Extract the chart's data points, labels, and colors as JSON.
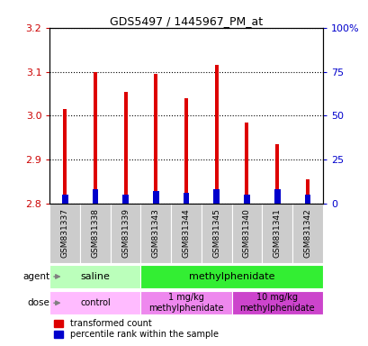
{
  "title": "GDS5497 / 1445967_PM_at",
  "samples": [
    "GSM831337",
    "GSM831338",
    "GSM831339",
    "GSM831343",
    "GSM831344",
    "GSM831345",
    "GSM831340",
    "GSM831341",
    "GSM831342"
  ],
  "transformed_count": [
    3.015,
    3.1,
    3.055,
    3.095,
    3.04,
    3.115,
    2.985,
    2.935,
    2.855
  ],
  "baseline": 2.8,
  "percentile_rank": [
    5,
    8,
    5,
    7,
    6,
    8,
    5,
    8,
    5
  ],
  "ylim_left": [
    2.8,
    3.2
  ],
  "yticks_left": [
    2.8,
    2.9,
    3.0,
    3.1,
    3.2
  ],
  "yticks_right": [
    0,
    25,
    50,
    75,
    100
  ],
  "bar_width": 0.12,
  "blue_bar_width": 0.2,
  "red_color": "#dd0000",
  "blue_color": "#0000cc",
  "agent_groups": [
    {
      "label": "saline",
      "span": [
        0,
        3
      ],
      "color": "#bbffbb"
    },
    {
      "label": "methylphenidate",
      "span": [
        3,
        9
      ],
      "color": "#33ee33"
    }
  ],
  "dose_groups": [
    {
      "label": "control",
      "span": [
        0,
        3
      ],
      "color": "#ffbbff"
    },
    {
      "label": "1 mg/kg\nmethylphenidate",
      "span": [
        3,
        6
      ],
      "color": "#ee88ee"
    },
    {
      "label": "10 mg/kg\nmethylphenidate",
      "span": [
        6,
        9
      ],
      "color": "#cc44cc"
    }
  ],
  "legend_red": "transformed count",
  "legend_blue": "percentile rank within the sample",
  "left_label_color": "#cc0000",
  "right_label_color": "#0000cc",
  "gray_bg": "#cccccc"
}
